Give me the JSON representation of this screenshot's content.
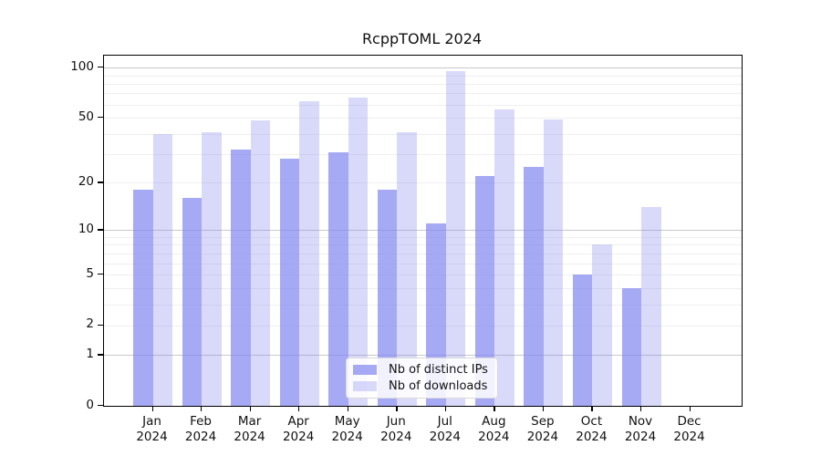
{
  "figure": {
    "background": "#ffffff"
  },
  "chart_data": {
    "type": "bar",
    "title": "RcppTOML 2024",
    "categories": [
      "Jan 2024",
      "Feb 2024",
      "Mar 2024",
      "Apr 2024",
      "May 2024",
      "Jun 2024",
      "Jul 2024",
      "Aug 2024",
      "Sep 2024",
      "Oct 2024",
      "Nov 2024",
      "Dec 2024"
    ],
    "x_tick_month": [
      "Jan",
      "Feb",
      "Mar",
      "Apr",
      "May",
      "Jun",
      "Jul",
      "Aug",
      "Sep",
      "Oct",
      "Nov",
      "Dec"
    ],
    "x_tick_year": "2024",
    "series": [
      {
        "name": "Nb of distinct IPs",
        "color": "#8085ee",
        "opacity": 0.7,
        "values": [
          18,
          16,
          32,
          28,
          31,
          18,
          11,
          22,
          25,
          5,
          4,
          0
        ]
      },
      {
        "name": "Nb of downloads",
        "color": "#8085ee",
        "opacity": 0.3,
        "values": [
          40,
          41,
          48,
          63,
          66,
          41,
          95,
          56,
          49,
          8,
          14,
          0
        ]
      }
    ],
    "y_axis": {
      "scale": "log1p",
      "tick_labels": [
        "100",
        "50",
        "20",
        "10",
        "5",
        "2",
        "1",
        "0"
      ],
      "ticks": [
        100,
        50,
        20,
        10,
        5,
        2,
        1,
        0
      ],
      "max_value": 118,
      "major_gridlines": [
        1,
        10,
        100
      ],
      "minor_gridlines": [
        2,
        3,
        4,
        5,
        6,
        7,
        8,
        9,
        20,
        30,
        40,
        50,
        60,
        70,
        80,
        90
      ]
    },
    "legend": {
      "position": "bottom-center",
      "entries": [
        "Nb of distinct IPs",
        "Nb of downloads"
      ]
    },
    "colors": {
      "grid_major": "#c9c9c9",
      "grid_minor": "#efefef",
      "frame": "#000000",
      "text": "#111111"
    }
  }
}
